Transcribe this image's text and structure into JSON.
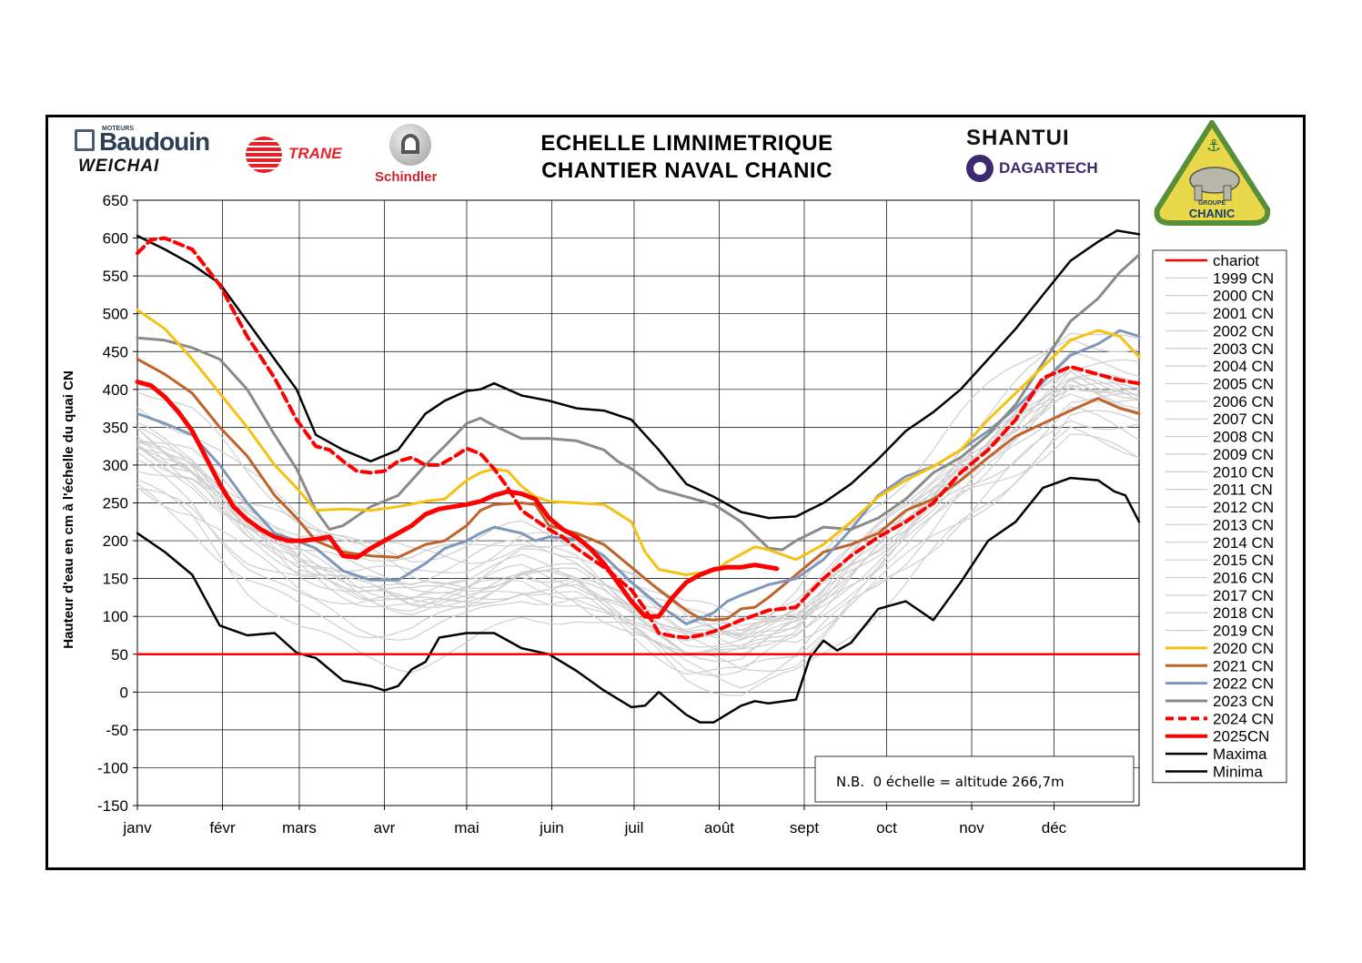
{
  "header": {
    "title_line1": "ECHELLE  LIMNIMETRIQUE",
    "title_line2": "CHANTIER NAVAL CHANIC"
  },
  "logos": {
    "baudouin": "Baudouin",
    "baudouin_small": "MOTEURS",
    "weichai": "WEICHAI",
    "trane": "TRANE",
    "schindler": "Schindler",
    "shantui": "SHANTUI",
    "dagartech": "DAGARTECH",
    "chanic_groupe": "GROUPE",
    "chanic_name": "CHANIC"
  },
  "note": "N.B.  0 échelle = altitude 266,7m",
  "colors": {
    "chariot": "#ff0000",
    "historic": "#cfcfcf",
    "y2020": "#f5c211",
    "y2021": "#c0632a",
    "y2022": "#7f97b8",
    "y2023": "#8a8a8a",
    "y2024": "#ff0000",
    "y2025": "#ff0000",
    "extremes": "#000000"
  },
  "chart_data": {
    "type": "line",
    "title": "ECHELLE  LIMNIMETRIQUE CHANTIER NAVAL CHANIC",
    "xlabel": "",
    "ylabel": "Hauteur d'eau en cm à l'échelle du quai CN",
    "ylim": [
      -150,
      650
    ],
    "yticks": [
      650,
      600,
      550,
      500,
      450,
      400,
      350,
      300,
      250,
      200,
      150,
      100,
      50,
      0,
      -50,
      -100,
      -150
    ],
    "xlim": [
      0,
      365
    ],
    "xticks": [
      {
        "label": "janv",
        "x": 0
      },
      {
        "label": "févr",
        "x": 31
      },
      {
        "label": "mars",
        "x": 59
      },
      {
        "label": "avr",
        "x": 90
      },
      {
        "label": "mai",
        "x": 120
      },
      {
        "label": "juin",
        "x": 151
      },
      {
        "label": "juil",
        "x": 181
      },
      {
        "label": "août",
        "x": 212
      },
      {
        "label": "sept",
        "x": 243
      },
      {
        "label": "oct",
        "x": 273
      },
      {
        "label": "nov",
        "x": 304
      },
      {
        "label": "déc",
        "x": 334
      }
    ],
    "grid": true,
    "legend_position": "right",
    "legend": [
      "chariot",
      "1999 CN",
      "2000 CN",
      "2001 CN",
      "2002 CN",
      "2003 CN",
      "2004 CN",
      "2005 CN",
      "2006 CN",
      "2007 CN",
      "2008 CN",
      "2009 CN",
      "2010 CN",
      "2011 CN",
      "2012 CN",
      "2013 CN",
      "2014 CN",
      "2015 CN",
      "2016 CN",
      "2017 CN",
      "2018 CN",
      "2019 CN",
      "2020 CN",
      "2021 CN",
      "2022 CN",
      "2023 CN",
      "2024 CN",
      "2025CN",
      "Maxima",
      "Minima"
    ],
    "series": [
      {
        "name": "chariot",
        "style": "chariot",
        "x": [
          0,
          365
        ],
        "y": [
          50,
          50
        ]
      },
      {
        "name": "Maxima",
        "style": "extreme",
        "x": [
          0,
          10,
          20,
          30,
          40,
          50,
          58,
          65,
          75,
          85,
          95,
          105,
          112,
          120,
          125,
          130,
          140,
          150,
          160,
          170,
          180,
          190,
          200,
          210,
          220,
          230,
          240,
          250,
          260,
          270,
          280,
          290,
          300,
          310,
          320,
          330,
          340,
          350,
          357,
          365
        ],
        "y": [
          603,
          585,
          565,
          540,
          490,
          440,
          400,
          340,
          320,
          305,
          320,
          368,
          385,
          398,
          400,
          408,
          392,
          385,
          375,
          372,
          360,
          320,
          275,
          258,
          238,
          230,
          232,
          250,
          275,
          308,
          345,
          370,
          400,
          440,
          480,
          525,
          570,
          595,
          610,
          605
        ]
      },
      {
        "name": "Minima",
        "style": "extreme",
        "x": [
          0,
          10,
          20,
          30,
          40,
          50,
          58,
          65,
          75,
          85,
          90,
          95,
          100,
          105,
          110,
          120,
          130,
          140,
          150,
          160,
          170,
          180,
          185,
          190,
          200,
          205,
          210,
          220,
          225,
          230,
          240,
          245,
          250,
          255,
          260,
          270,
          280,
          290,
          300,
          310,
          320,
          330,
          340,
          350,
          356,
          360,
          365
        ],
        "y": [
          210,
          185,
          155,
          88,
          75,
          78,
          52,
          45,
          15,
          8,
          2,
          8,
          30,
          40,
          72,
          78,
          78,
          58,
          50,
          28,
          2,
          -20,
          -18,
          0,
          -30,
          -40,
          -40,
          -18,
          -12,
          -15,
          -10,
          45,
          68,
          55,
          65,
          110,
          120,
          95,
          145,
          200,
          225,
          270,
          283,
          280,
          265,
          260,
          225
        ]
      },
      {
        "name": "2020 CN",
        "style": "y2020",
        "x": [
          0,
          10,
          20,
          30,
          40,
          50,
          58,
          65,
          75,
          85,
          95,
          105,
          112,
          120,
          125,
          130,
          135,
          140,
          145,
          150,
          160,
          170,
          180,
          185,
          190,
          200,
          210,
          215,
          220,
          225,
          230,
          240,
          250,
          260,
          270,
          280,
          290,
          300,
          310,
          320,
          330,
          340,
          350,
          358,
          365
        ],
        "y": [
          505,
          480,
          440,
          395,
          350,
          300,
          270,
          240,
          242,
          240,
          245,
          252,
          255,
          280,
          290,
          295,
          292,
          272,
          258,
          252,
          250,
          248,
          225,
          185,
          162,
          155,
          160,
          172,
          182,
          192,
          188,
          175,
          195,
          225,
          258,
          280,
          298,
          320,
          360,
          395,
          430,
          465,
          478,
          470,
          443
        ]
      },
      {
        "name": "2021 CN",
        "style": "y2021",
        "x": [
          0,
          10,
          20,
          30,
          40,
          50,
          58,
          65,
          75,
          85,
          95,
          105,
          112,
          120,
          125,
          130,
          140,
          145,
          150,
          160,
          170,
          180,
          190,
          200,
          205,
          210,
          215,
          220,
          225,
          230,
          240,
          250,
          260,
          270,
          280,
          290,
          300,
          310,
          320,
          330,
          340,
          350,
          358,
          365
        ],
        "y": [
          440,
          420,
          395,
          350,
          312,
          260,
          230,
          200,
          185,
          180,
          178,
          195,
          200,
          220,
          240,
          248,
          250,
          248,
          220,
          210,
          195,
          165,
          135,
          108,
          97,
          95,
          97,
          110,
          112,
          125,
          155,
          185,
          195,
          210,
          240,
          255,
          280,
          310,
          338,
          355,
          372,
          388,
          375,
          368
        ]
      },
      {
        "name": "2022 CN",
        "style": "y2022",
        "x": [
          0,
          10,
          20,
          30,
          40,
          50,
          58,
          65,
          75,
          85,
          95,
          105,
          112,
          120,
          125,
          130,
          140,
          145,
          150,
          160,
          170,
          180,
          190,
          200,
          205,
          210,
          215,
          220,
          225,
          230,
          240,
          250,
          260,
          270,
          280,
          290,
          300,
          310,
          320,
          330,
          340,
          350,
          358,
          365
        ],
        "y": [
          368,
          355,
          340,
          300,
          250,
          210,
          200,
          190,
          160,
          148,
          148,
          170,
          190,
          200,
          210,
          218,
          210,
          200,
          205,
          202,
          180,
          145,
          115,
          90,
          97,
          105,
          120,
          128,
          135,
          142,
          150,
          175,
          215,
          260,
          285,
          298,
          320,
          345,
          375,
          410,
          445,
          460,
          478,
          470
        ]
      },
      {
        "name": "2023 CN",
        "style": "y2023",
        "x": [
          0,
          10,
          20,
          30,
          40,
          50,
          58,
          65,
          70,
          75,
          85,
          95,
          105,
          112,
          120,
          125,
          130,
          140,
          150,
          160,
          170,
          175,
          180,
          190,
          200,
          210,
          220,
          230,
          235,
          240,
          250,
          260,
          270,
          280,
          290,
          300,
          310,
          320,
          330,
          340,
          350,
          358,
          365
        ],
        "y": [
          468,
          465,
          455,
          440,
          400,
          340,
          295,
          240,
          215,
          220,
          245,
          260,
          300,
          325,
          355,
          362,
          352,
          335,
          335,
          332,
          320,
          305,
          295,
          268,
          258,
          248,
          225,
          190,
          188,
          200,
          218,
          215,
          230,
          255,
          290,
          310,
          340,
          380,
          435,
          490,
          520,
          555,
          578
        ]
      },
      {
        "name": "2024 CN",
        "style": "y2024",
        "x": [
          0,
          5,
          10,
          20,
          30,
          40,
          50,
          58,
          62,
          65,
          70,
          75,
          80,
          85,
          90,
          95,
          100,
          105,
          110,
          115,
          120,
          125,
          130,
          135,
          140,
          150,
          155,
          160,
          170,
          180,
          185,
          190,
          195,
          200,
          205,
          210,
          220,
          230,
          240,
          250,
          260,
          270,
          280,
          290,
          300,
          310,
          320,
          330,
          340,
          350,
          358,
          365
        ],
        "y": [
          580,
          598,
          600,
          585,
          538,
          470,
          415,
          360,
          340,
          325,
          320,
          305,
          292,
          290,
          292,
          305,
          310,
          300,
          300,
          310,
          322,
          315,
          295,
          270,
          240,
          215,
          205,
          190,
          165,
          135,
          110,
          78,
          74,
          72,
          75,
          80,
          95,
          108,
          112,
          150,
          180,
          205,
          225,
          250,
          290,
          320,
          360,
          415,
          430,
          420,
          412,
          408
        ]
      },
      {
        "name": "2025CN",
        "style": "y2025",
        "x": [
          0,
          5,
          10,
          15,
          20,
          25,
          30,
          35,
          40,
          45,
          50,
          55,
          60,
          65,
          70,
          75,
          80,
          85,
          90,
          95,
          100,
          105,
          110,
          115,
          120,
          125,
          130,
          135,
          140,
          145,
          150,
          155,
          160,
          165,
          170,
          175,
          180,
          185,
          190,
          195,
          200,
          205,
          210,
          215,
          220,
          225,
          230,
          233
        ],
        "y": [
          410,
          405,
          390,
          370,
          345,
          310,
          275,
          245,
          228,
          215,
          205,
          200,
          200,
          202,
          205,
          180,
          178,
          190,
          200,
          210,
          220,
          235,
          242,
          245,
          248,
          252,
          260,
          265,
          262,
          255,
          230,
          215,
          205,
          190,
          170,
          145,
          120,
          100,
          100,
          125,
          145,
          155,
          162,
          165,
          165,
          168,
          165,
          163
        ]
      },
      {
        "name": "1999-2019 CN",
        "style": "historic",
        "x": [
          0,
          20,
          40,
          60,
          80,
          100,
          120,
          140,
          160,
          180,
          200,
          220,
          240,
          260,
          280,
          300,
          320,
          340,
          365
        ],
        "y": [
          330,
          290,
          220,
          170,
          140,
          125,
          135,
          160,
          150,
          110,
          70,
          60,
          90,
          160,
          220,
          290,
          350,
          410,
          390
        ]
      }
    ]
  }
}
